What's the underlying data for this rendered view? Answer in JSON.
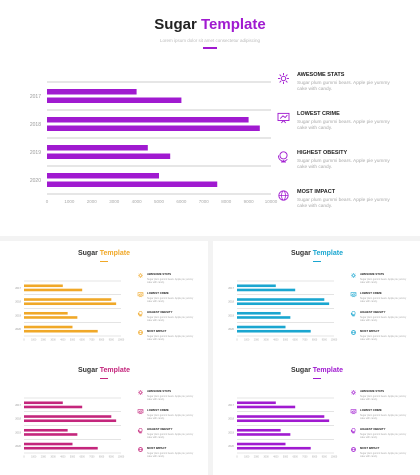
{
  "template": {
    "title_word": "Sugar",
    "title_accent": "Template",
    "subtitle": "Lorem ipsum dolor sit amet consectetur adipiscing"
  },
  "features": [
    {
      "icon": "sun-icon",
      "title": "AWESOME STATS",
      "desc": "Sugar plum gummi bears. Apple pie yummy cake with candy."
    },
    {
      "icon": "presentation-board-icon",
      "title": "LOWEST CRIME",
      "desc": "Sugar plum gummi bears. Apple pie yummy cake with candy."
    },
    {
      "icon": "globe-stand-icon",
      "title": "HIGHEST OBESITY",
      "desc": "Sugar plum gummi bears. Apple pie yummy cake with candy."
    },
    {
      "icon": "globe-icon",
      "title": "MOST IMPACT",
      "desc": "Sugar plum gummi bears. Apple pie yummy cake with candy."
    }
  ],
  "chart_data": {
    "type": "bar",
    "orientation": "horizontal",
    "categories": [
      "2017",
      "2018",
      "2019",
      "2020"
    ],
    "series": [
      {
        "values": [
          4000,
          9000,
          4500,
          5000
        ]
      },
      {
        "values": [
          6000,
          9500,
          5500,
          7600
        ]
      }
    ],
    "xticks": [
      "0",
      "1000",
      "2000",
      "3000",
      "4000",
      "5000",
      "6000",
      "7000",
      "8000",
      "9000",
      "10000"
    ],
    "xlim": [
      0,
      10000
    ]
  },
  "variants": [
    {
      "name": "purple",
      "accent": "#a01ad0"
    },
    {
      "name": "orange",
      "accent": "#f0a828"
    },
    {
      "name": "blue",
      "accent": "#1aa6d0"
    },
    {
      "name": "pink",
      "accent": "#c4267c"
    },
    {
      "name": "violet",
      "accent": "#a01ad0"
    }
  ]
}
